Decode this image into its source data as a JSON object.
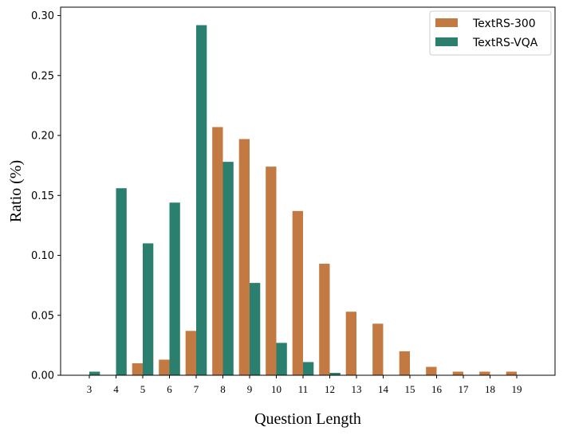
{
  "chart_data": {
    "type": "bar",
    "xlabel": "Question Length",
    "ylabel": "Ratio (%)",
    "categories": [
      "3",
      "4",
      "5",
      "6",
      "7",
      "8",
      "9",
      "10",
      "11",
      "12",
      "13",
      "14",
      "15",
      "16",
      "17",
      "18",
      "19"
    ],
    "ylim": [
      0,
      0.307
    ],
    "yticks": [
      "0.00",
      "0.05",
      "0.10",
      "0.15",
      "0.20",
      "0.25",
      "0.30"
    ],
    "grid": false,
    "legend_position": "top-right",
    "series": [
      {
        "name": "TextRS-300",
        "color": "#c27a42",
        "values": [
          0,
          0,
          0.01,
          0.013,
          0.037,
          0.207,
          0.197,
          0.174,
          0.137,
          0.093,
          0.053,
          0.043,
          0.02,
          0.007,
          0.003,
          0.003,
          0.003
        ]
      },
      {
        "name": "TextRS-VQA",
        "color": "#2a7f6f",
        "values": [
          0.003,
          0.156,
          0.11,
          0.144,
          0.292,
          0.178,
          0.077,
          0.027,
          0.011,
          0.002,
          0,
          0,
          0,
          0,
          0,
          0,
          0
        ]
      }
    ]
  }
}
